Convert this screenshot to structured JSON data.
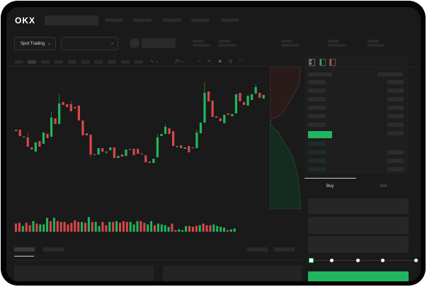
{
  "header": {
    "logo": "OKX"
  },
  "toolbar": {
    "market_selector": "Spot Trading",
    "market_selector_icon": "chevron-down-icon",
    "pair_selector_icon": "chevron-down-icon"
  },
  "order_panel": {
    "tabs": [
      {
        "label": "Buy",
        "active": true
      },
      {
        "label": "Sell",
        "active": false
      }
    ],
    "slider_level": 0
  },
  "colors": {
    "up": "#22b55f",
    "down": "#d9484a",
    "background": "#1a1a1a"
  },
  "chart_data": {
    "type": "candlestick",
    "candles_ohlc": [
      [
        118,
        118,
        116,
        116
      ],
      [
        118,
        118,
        109,
        109
      ],
      [
        107.5,
        108.5,
        107.5,
        108.5
      ],
      [
        107,
        114,
        94,
        94
      ],
      [
        93,
        93,
        90,
        90
      ],
      [
        87,
        100,
        87,
        100
      ],
      [
        102,
        102,
        94,
        94
      ],
      [
        98,
        114,
        98,
        114
      ],
      [
        112,
        112,
        106,
        106
      ],
      [
        108,
        143,
        108,
        135
      ],
      [
        134,
        134,
        126,
        126
      ],
      [
        126,
        168,
        126,
        155
      ],
      [
        157,
        157,
        153,
        153
      ],
      [
        154,
        154,
        150,
        150
      ],
      [
        154,
        159,
        144,
        144
      ],
      [
        150,
        150,
        148,
        148
      ],
      [
        152,
        152,
        131,
        131
      ],
      [
        131,
        131,
        110,
        110
      ],
      [
        113,
        113,
        110,
        110
      ],
      [
        111,
        111,
        79,
        83
      ],
      [
        83.5,
        83.5,
        82.5,
        82.5
      ],
      [
        83,
        92,
        83,
        92
      ],
      [
        92,
        92,
        87,
        87
      ],
      [
        86,
        88,
        84,
        87
      ],
      [
        89,
        93,
        89,
        93
      ],
      [
        93,
        93,
        78,
        78
      ],
      [
        78,
        81,
        78,
        81
      ],
      [
        83,
        83,
        80,
        80
      ],
      [
        81,
        90,
        81,
        90
      ],
      [
        91,
        91,
        90,
        90
      ],
      [
        91,
        91,
        82,
        82
      ],
      [
        91,
        91,
        84,
        84
      ],
      [
        84.5,
        84.5,
        83.5,
        83.5
      ],
      [
        82,
        82,
        72,
        72
      ],
      [
        73,
        73,
        71,
        71
      ],
      [
        71,
        77,
        71,
        77
      ],
      [
        79,
        112,
        79,
        107
      ],
      [
        109,
        112,
        109,
        112
      ],
      [
        112,
        126,
        112,
        122
      ],
      [
        120,
        120,
        112,
        112
      ],
      [
        116,
        116,
        95,
        95
      ],
      [
        94,
        95,
        92,
        95
      ],
      [
        96,
        96,
        92,
        92
      ],
      [
        91,
        93,
        91,
        93
      ],
      [
        95,
        95,
        86,
        86
      ],
      [
        93,
        93,
        92,
        92
      ],
      [
        92,
        118,
        92,
        114
      ],
      [
        113,
        128,
        113,
        128
      ],
      [
        128,
        185,
        128,
        170
      ],
      [
        172,
        172,
        158,
        158
      ],
      [
        159,
        159,
        136,
        136
      ],
      [
        137,
        137,
        135,
        135
      ],
      [
        134,
        134,
        130,
        130
      ],
      [
        127,
        139,
        127,
        139
      ],
      [
        141,
        141,
        139,
        139
      ],
      [
        137,
        140,
        137,
        140
      ],
      [
        141,
        168,
        141,
        168
      ],
      [
        170,
        170,
        158,
        158
      ],
      [
        157,
        157,
        153,
        153
      ],
      [
        152,
        166,
        152,
        166
      ],
      [
        160,
        168,
        160,
        168
      ],
      [
        169,
        182,
        169,
        178
      ],
      [
        170,
        170,
        163,
        163
      ],
      [
        162,
        167,
        162,
        167
      ]
    ],
    "volume": [
      10,
      11,
      7,
      11,
      8,
      13,
      10,
      9,
      9,
      17,
      13,
      17,
      13,
      12,
      12,
      9,
      11,
      14,
      12,
      12,
      11,
      18,
      12,
      12,
      7,
      12,
      8,
      12,
      12,
      13,
      11,
      13,
      12,
      12,
      9,
      13,
      13,
      11,
      9,
      13,
      8,
      10,
      9,
      8,
      6,
      10,
      2,
      3,
      2,
      7,
      7,
      6,
      7,
      8,
      10,
      8,
      8,
      9,
      7,
      6,
      5,
      2,
      3,
      4
    ],
    "volume_up": [
      0,
      0,
      1,
      0,
      0,
      1,
      0,
      1,
      1,
      1,
      0,
      1,
      0,
      0,
      0,
      0,
      0,
      0,
      0,
      1,
      0,
      1,
      0,
      1,
      1,
      0,
      0,
      1,
      0,
      1,
      0,
      0,
      0,
      1,
      1,
      1,
      0,
      0,
      1,
      1,
      0,
      1,
      1,
      1,
      1,
      0,
      0,
      1,
      1,
      1,
      0,
      0,
      0,
      1,
      0,
      0,
      0,
      1,
      1,
      1,
      1,
      0,
      1,
      1
    ]
  }
}
